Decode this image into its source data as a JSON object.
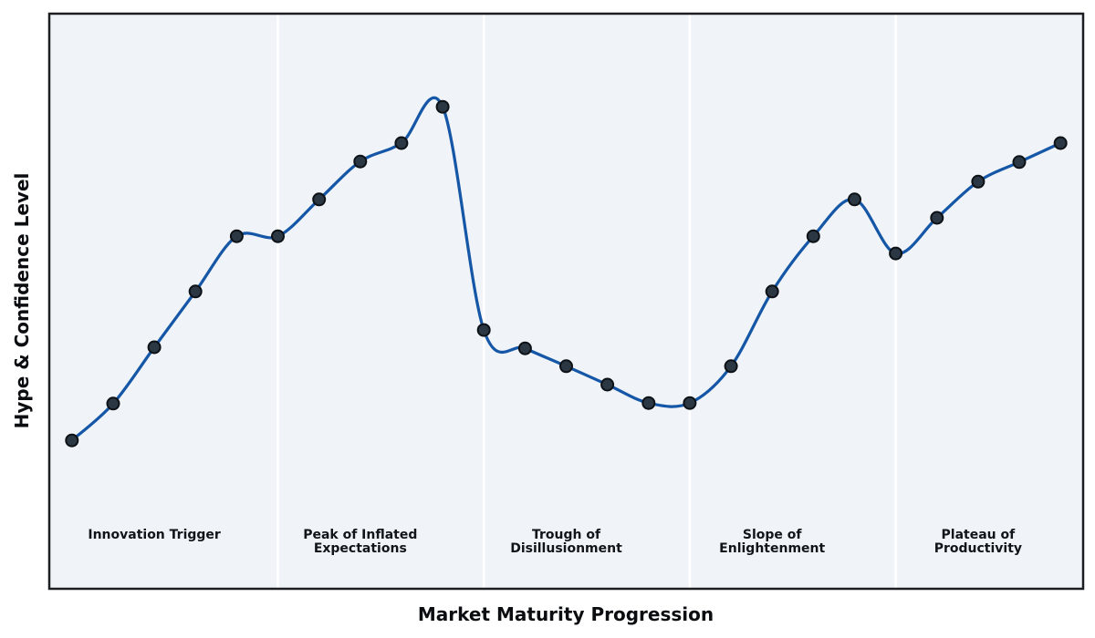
{
  "figure": {
    "x_axis_label": "Market Maturity Progression",
    "y_axis_label": "Hype & Confidence Level"
  },
  "phases": [
    {
      "line1": "Innovation Trigger",
      "line2": ""
    },
    {
      "line1": "Peak of Inflated",
      "line2": "Expectations"
    },
    {
      "line1": "Trough of",
      "line2": "Disillusionment"
    },
    {
      "line1": "Slope of",
      "line2": "Enlightenment"
    },
    {
      "line1": "Plateau of",
      "line2": "Productivity"
    }
  ],
  "chart_data": {
    "type": "line",
    "title": "",
    "xlabel": "Market Maturity Progression",
    "ylabel": "Hype & Confidence Level",
    "x": [
      0,
      1,
      2,
      3,
      4,
      5,
      6,
      7,
      8,
      9,
      10,
      11,
      12,
      13,
      14,
      15,
      16,
      17,
      18,
      19,
      20,
      21,
      22,
      23,
      24
    ],
    "series": [
      {
        "name": "hype_confidence_level",
        "values": [
          25.8,
          32.2,
          42.0,
          51.7,
          61.3,
          61.3,
          67.7,
          74.3,
          77.5,
          83.8,
          45.0,
          41.8,
          38.7,
          35.5,
          32.3,
          32.3,
          38.7,
          51.7,
          61.3,
          67.7,
          58.3,
          64.5,
          70.8,
          74.2,
          77.5
        ]
      }
    ],
    "xlim": [
      -0.55,
      24.55
    ],
    "ylim": [
      0,
      100
    ],
    "grid": false,
    "legend": false,
    "ticks": "none",
    "curve_style": "smooth-spline-with-overshoot",
    "phase_boundaries_x": [
      5,
      10,
      15,
      20
    ],
    "phase_label_x": [
      2,
      7,
      12,
      17,
      22
    ],
    "colors": {
      "line": "#1557a6",
      "marker_fill": "#2b3743",
      "marker_edge": "#0c1116",
      "plot_background": "#f0f4f8",
      "divider": "#ffffff",
      "border": "#1c1e22",
      "figure_background": "#ffffff"
    }
  }
}
